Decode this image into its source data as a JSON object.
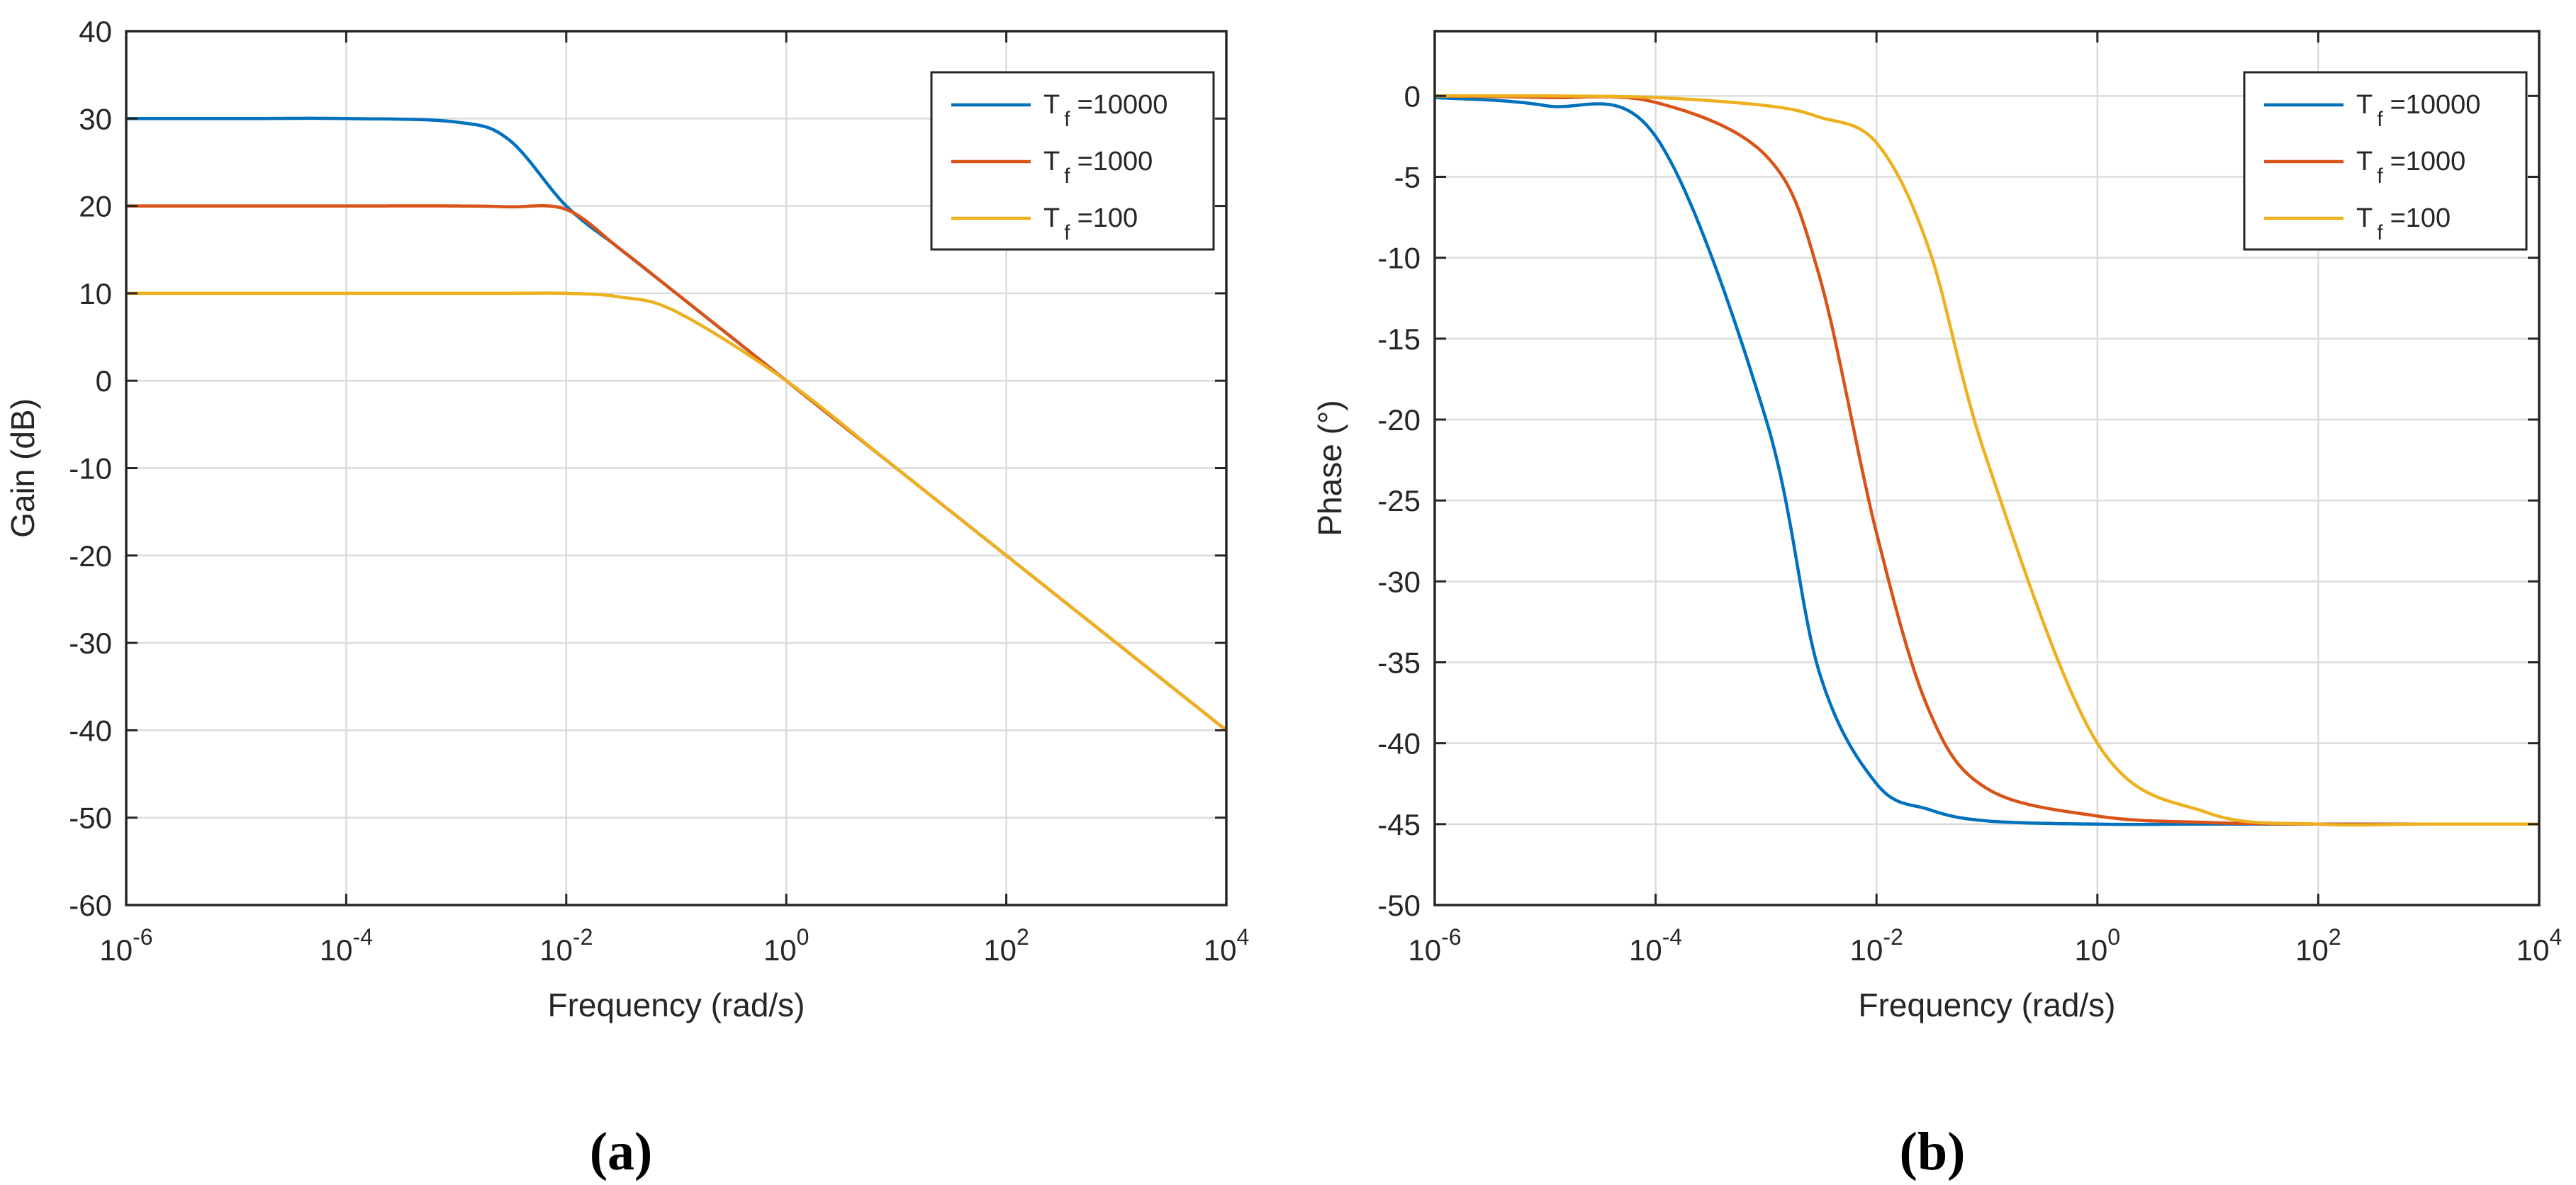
{
  "chart_data": [
    {
      "type": "line",
      "panel_label": "(a)",
      "xlabel": "Frequency (rad/s)",
      "ylabel": "Gain (dB)",
      "xscale": "log",
      "xlim": [
        1e-06,
        10000.0
      ],
      "ylim": [
        -60,
        40
      ],
      "x_ticks": [
        {
          "base": "10",
          "exp": "-6"
        },
        {
          "base": "10",
          "exp": "-4"
        },
        {
          "base": "10",
          "exp": "-2"
        },
        {
          "base": "10",
          "exp": "0"
        },
        {
          "base": "10",
          "exp": "2"
        },
        {
          "base": "10",
          "exp": "4"
        }
      ],
      "y_ticks": [
        "40",
        "30",
        "20",
        "10",
        "0",
        "-10",
        "-20",
        "-30",
        "-40",
        "-50",
        "-60"
      ],
      "grid": true,
      "legend_position": "top-right",
      "series": [
        {
          "name_main": "T",
          "name_sub": "f",
          "name_rest": "=10000",
          "Tf": 10000,
          "color": "#0072BD",
          "x": [
            1e-06,
            1e-05,
            0.0001,
            0.001,
            0.003,
            0.01,
            0.03,
            0.1,
            1,
            10,
            100,
            1000,
            10000.0
          ],
          "values": [
            30,
            30,
            30,
            29.6,
            27.6,
            20.0,
            15.2,
            10.0,
            0,
            -10,
            -20,
            -30,
            -40
          ]
        },
        {
          "name_main": "T",
          "name_sub": "f",
          "name_rest": "=1000",
          "Tf": 1000,
          "color": "#D95319",
          "x": [
            1e-06,
            1e-05,
            0.0001,
            0.001,
            0.003,
            0.01,
            0.03,
            0.1,
            1,
            10,
            100,
            1000,
            10000.0
          ],
          "values": [
            20,
            20,
            20,
            20,
            19.9,
            19.6,
            15.2,
            10.0,
            0,
            -10,
            -20,
            -30,
            -40
          ]
        },
        {
          "name_main": "T",
          "name_sub": "f",
          "name_rest": "=100",
          "Tf": 100,
          "color": "#EDB120",
          "x": [
            1e-06,
            1e-05,
            0.0001,
            0.001,
            0.003,
            0.01,
            0.03,
            0.1,
            1,
            10,
            100,
            1000,
            10000.0
          ],
          "values": [
            10,
            10,
            10,
            10,
            10,
            10,
            9.6,
            7.9,
            0,
            -10,
            -20,
            -30,
            -40
          ]
        }
      ]
    },
    {
      "type": "line",
      "panel_label": "(b)",
      "xlabel": "Frequency (rad/s)",
      "ylabel": "Phase (°)",
      "xscale": "log",
      "xlim": [
        1e-06,
        10000.0
      ],
      "ylim": [
        -50,
        4
      ],
      "x_ticks": [
        {
          "base": "10",
          "exp": "-6"
        },
        {
          "base": "10",
          "exp": "-4"
        },
        {
          "base": "10",
          "exp": "-2"
        },
        {
          "base": "10",
          "exp": "0"
        },
        {
          "base": "10",
          "exp": "2"
        },
        {
          "base": "10",
          "exp": "4"
        }
      ],
      "y_ticks": [
        "0",
        "-5",
        "-10",
        "-15",
        "-20",
        "-25",
        "-30",
        "-35",
        "-40",
        "-45",
        "-50"
      ],
      "grid": true,
      "legend_position": "top-right",
      "series": [
        {
          "name_main": "T",
          "name_sub": "f",
          "name_rest": "=10000",
          "Tf": 10000,
          "color": "#0072BD",
          "x": [
            1e-06,
            1e-05,
            0.0001,
            0.001,
            0.003,
            0.01,
            0.03,
            0.1,
            1,
            10,
            100,
            1000,
            10000.0
          ],
          "values": [
            -0.1,
            -0.6,
            -2.5,
            -20,
            -35.5,
            -42.5,
            -44.1,
            -44.8,
            -45,
            -45,
            -45,
            -45,
            -45
          ]
        },
        {
          "name_main": "T",
          "name_sub": "f",
          "name_rest": "=1000",
          "Tf": 1000,
          "color": "#D95319",
          "x": [
            1e-06,
            1e-05,
            0.0001,
            0.001,
            0.003,
            0.01,
            0.03,
            0.1,
            1,
            10,
            100,
            1000,
            10000.0
          ],
          "values": [
            0,
            -0.1,
            -0.4,
            -3.7,
            -11,
            -27,
            -38,
            -42.8,
            -44.5,
            -44.9,
            -45,
            -45,
            -45
          ]
        },
        {
          "name_main": "T",
          "name_sub": "f",
          "name_rest": "=100",
          "Tf": 100,
          "color": "#EDB120",
          "x": [
            1e-06,
            1e-05,
            0.0001,
            0.001,
            0.003,
            0.01,
            0.03,
            0.1,
            1,
            10,
            100,
            1000,
            10000.0
          ],
          "values": [
            0,
            0,
            -0.1,
            -0.6,
            -1.3,
            -2.9,
            -9.5,
            -22.5,
            -40,
            -44.3,
            -45,
            -45,
            -45
          ]
        }
      ]
    }
  ]
}
